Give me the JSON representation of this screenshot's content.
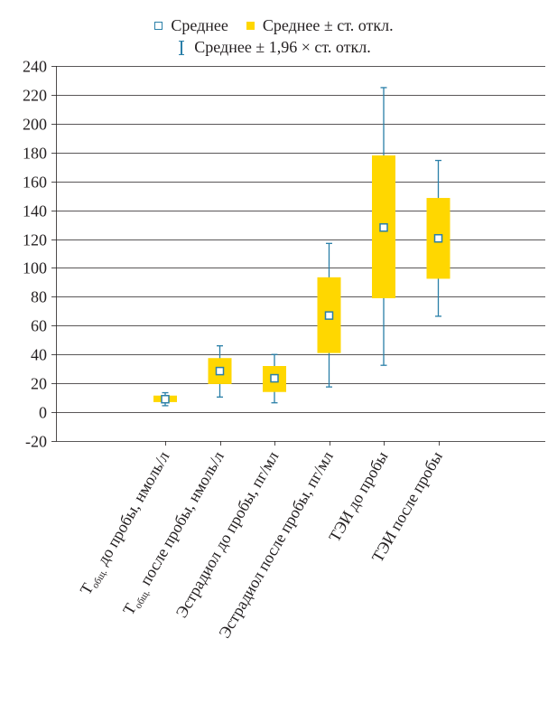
{
  "legend": {
    "mean": "Среднее",
    "mean_sd": "Среднее ± ст. откл.",
    "mean_196sd": "Среднее ± 1,96 × ст. откл."
  },
  "colors": {
    "box": "#ffd700",
    "whisker": "#2a7fa8",
    "grid": "#231f20",
    "text": "#231f20"
  },
  "chart_data": {
    "type": "box",
    "title": "",
    "xlabel": "",
    "ylabel": "",
    "ylim": [
      -20,
      240
    ],
    "yticks": [
      -20,
      0,
      20,
      40,
      60,
      80,
      100,
      120,
      140,
      160,
      180,
      200,
      220,
      240
    ],
    "grid": true,
    "legend_position": "top",
    "categories": [
      {
        "main": "T",
        "sub": "общ.",
        "rest": " до пробы, нмоль/л"
      },
      {
        "main": "T",
        "sub": "общ.",
        "rest": " после пробы, нмоль/л"
      },
      {
        "main": "Эстрадиол до пробы, пг/мл",
        "sub": "",
        "rest": ""
      },
      {
        "main": "Эстрадиол после пробы, пг/мл",
        "sub": "",
        "rest": ""
      },
      {
        "main": "ТЭИ до пробы",
        "sub": "",
        "rest": ""
      },
      {
        "main": "ТЭИ после пробы",
        "sub": "",
        "rest": ""
      }
    ],
    "series": [
      {
        "name": "Среднее",
        "values": [
          9,
          28.5,
          23.5,
          67,
          128,
          120.5
        ]
      },
      {
        "name": "Среднее ± ст. откл.",
        "low": [
          7,
          19.5,
          14,
          41,
          79,
          92.5
        ],
        "high": [
          11.5,
          37.5,
          32,
          93.5,
          178,
          148.5
        ]
      },
      {
        "name": "Среднее ± 1,96 × ст. откл.",
        "low": [
          4.5,
          10.5,
          6.5,
          17.5,
          32.5,
          66.5
        ],
        "high": [
          13.5,
          46,
          40,
          117,
          225,
          174.5
        ]
      }
    ]
  }
}
